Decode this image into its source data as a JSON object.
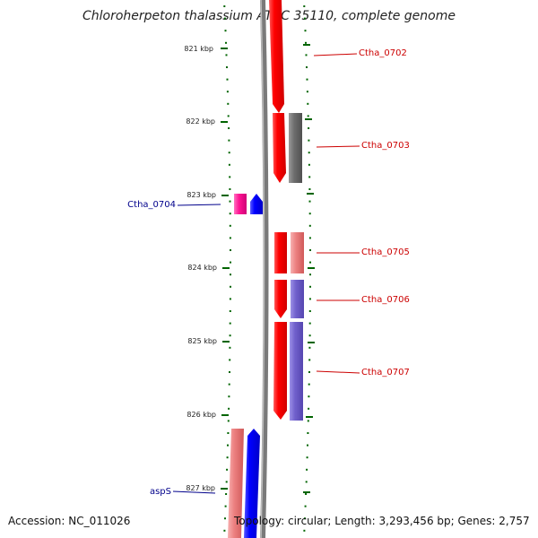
{
  "title": "Chloroherpeton thalassium ATCC 35110, complete genome",
  "accession": "Accession: NC_011026",
  "topology": "Topology: circular; Length: 3,293,456 bp; Genes: 2,757",
  "axis": {
    "unit": "kbp",
    "ticks": [
      "821 kbp",
      "822 kbp",
      "823 kbp",
      "824 kbp",
      "825 kbp",
      "826 kbp",
      "827 kbp"
    ]
  },
  "gene_labels": [
    {
      "id": "Ctha_0702",
      "label": "Ctha_0702",
      "strand": "+",
      "color": "#cc0000"
    },
    {
      "id": "Ctha_0703",
      "label": "Ctha_0703",
      "strand": "+",
      "color": "#cc0000"
    },
    {
      "id": "Ctha_0704",
      "label": "Ctha_0704",
      "strand": "-",
      "color": "#00008b"
    },
    {
      "id": "Ctha_0705",
      "label": "Ctha_0705",
      "strand": "+",
      "color": "#cc0000"
    },
    {
      "id": "Ctha_0706",
      "label": "Ctha_0706",
      "strand": "+",
      "color": "#cc0000"
    },
    {
      "id": "Ctha_0707",
      "label": "Ctha_0707",
      "strand": "+",
      "color": "#cc0000"
    },
    {
      "id": "aspS",
      "label": "aspS",
      "strand": "-",
      "color": "#00008b"
    }
  ],
  "colors": {
    "backbone": "#7a7a7a",
    "cds_forward": "#ff0000",
    "cds_reverse": "#0000ff",
    "tick": "#006400",
    "cog_gray": "#6e6e6e",
    "cog_pink": "#ec8080",
    "cog_purple": "#7060cc",
    "cog_magenta": "#ff1493"
  }
}
